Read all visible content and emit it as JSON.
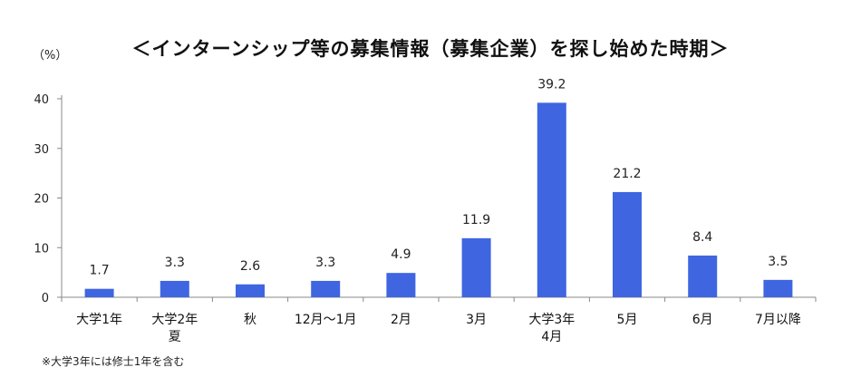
{
  "chart_data": {
    "type": "bar",
    "title": "＜インターンシップ等の募集情報（募集企業）を探し始めた時期＞",
    "ylabel": "（%）",
    "xlabel": "",
    "ylim": [
      0,
      40
    ],
    "yticks": [
      0,
      10,
      20,
      30,
      40
    ],
    "categories": [
      [
        "大学1年"
      ],
      [
        "大学2年",
        "夏"
      ],
      [
        "秋"
      ],
      [
        "12月～1月"
      ],
      [
        "2月"
      ],
      [
        "3月"
      ],
      [
        "大学3年",
        "4月"
      ],
      [
        "5月"
      ],
      [
        "6月"
      ],
      [
        "7月以降"
      ]
    ],
    "values": [
      1.7,
      3.3,
      2.6,
      3.3,
      4.9,
      11.9,
      39.2,
      21.2,
      8.4,
      3.5
    ],
    "value_labels": [
      "1.7",
      "3.3",
      "2.6",
      "3.3",
      "4.9",
      "11.9",
      "39.2",
      "21.2",
      "8.4",
      "3.5"
    ],
    "bar_color": "#3f66e0",
    "grid": false,
    "legend": "none"
  },
  "footnote": "※大学3年には修士1年を含む"
}
